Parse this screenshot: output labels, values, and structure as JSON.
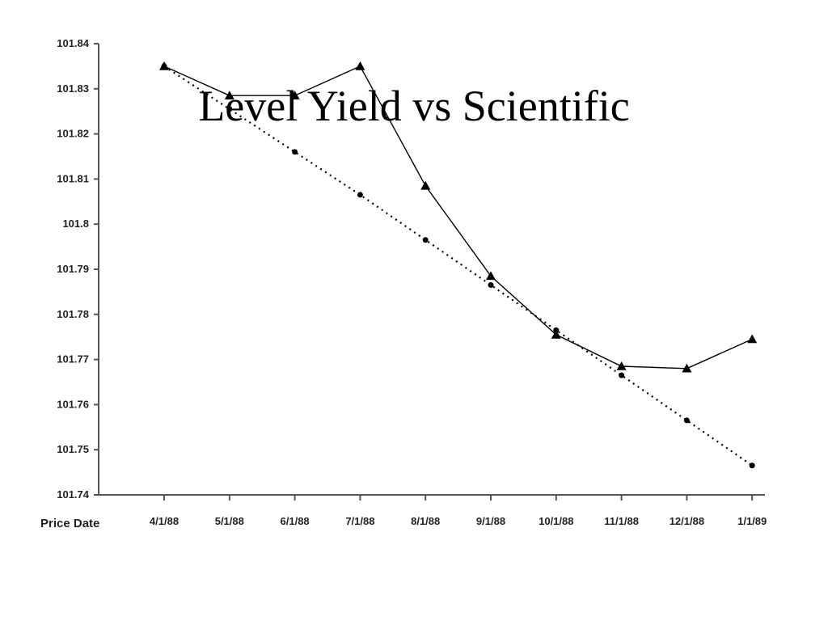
{
  "chart_data": {
    "type": "line",
    "title": "Level Yield vs Scientific",
    "xlabel": "Price Date",
    "ylabel": "",
    "categories": [
      "4/1/88",
      "5/1/88",
      "6/1/88",
      "7/1/88",
      "8/1/88",
      "9/1/88",
      "10/1/88",
      "11/1/88",
      "12/1/88",
      "1/1/89"
    ],
    "ylim": [
      101.74,
      101.84
    ],
    "yticks": [
      "101.74",
      "101.75",
      "101.76",
      "101.77",
      "101.78",
      "101.79",
      "101.8",
      "101.81",
      "101.82",
      "101.83",
      "101.84"
    ],
    "grid": false,
    "legend": "none",
    "series": [
      {
        "line_style": "solid",
        "marker": "triangle",
        "color": "#000000",
        "values": [
          101.835,
          101.8285,
          101.8285,
          101.835,
          101.8085,
          101.7885,
          101.7755,
          101.7685,
          101.768,
          101.7745
        ]
      },
      {
        "line_style": "dotted",
        "marker": "circle",
        "color": "#000000",
        "values": [
          101.835,
          101.8255,
          101.816,
          101.8065,
          101.7965,
          101.7865,
          101.7765,
          101.7665,
          101.7565,
          101.7465
        ]
      }
    ]
  }
}
